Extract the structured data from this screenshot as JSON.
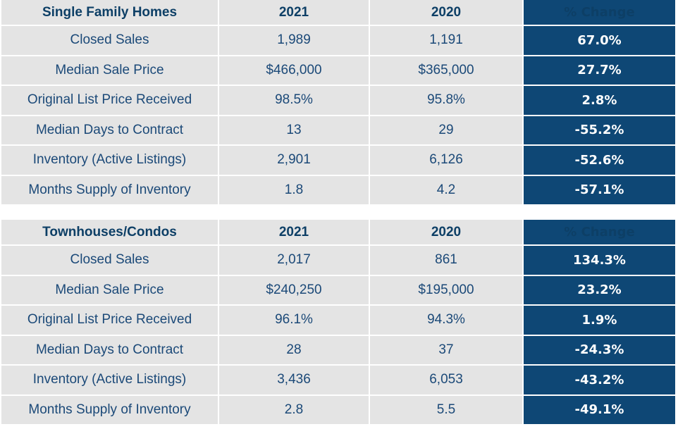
{
  "chart_data": [
    {
      "type": "table",
      "columns": [
        "Single Family Homes",
        "2021",
        "2020",
        "% Change"
      ],
      "rows": [
        [
          "Closed Sales",
          "1,989",
          "1,191",
          "67.0%"
        ],
        [
          "Median Sale Price",
          "$466,000",
          "$365,000",
          "27.7%"
        ],
        [
          "Original List Price Received",
          "98.5%",
          "95.8%",
          "2.8%"
        ],
        [
          "Median Days to Contract",
          "13",
          "29",
          "-55.2%"
        ],
        [
          "Inventory (Active Listings)",
          "2,901",
          "6,126",
          "-52.6%"
        ],
        [
          "Months Supply of Inventory",
          "1.8",
          "4.2",
          "-57.1%"
        ]
      ]
    },
    {
      "type": "table",
      "columns": [
        "Townhouses/Condos",
        "2021",
        "2020",
        "% Change"
      ],
      "rows": [
        [
          "Closed Sales",
          "2,017",
          "861",
          "134.3%"
        ],
        [
          "Median Sale Price",
          "$240,250",
          "$195,000",
          "23.2%"
        ],
        [
          "Original List Price Received",
          "96.1%",
          "94.3%",
          "1.9%"
        ],
        [
          "Median Days to Contract",
          "28",
          "37",
          "-24.3%"
        ],
        [
          "Inventory (Active Listings)",
          "3,436",
          "6,053",
          "-43.2%"
        ],
        [
          "Months Supply of Inventory",
          "2.8",
          "5.5",
          "-49.1%"
        ]
      ]
    }
  ],
  "colors": {
    "cell_background": "#e4e4e4",
    "text": "#1b4978",
    "change_column_background": "#0e4775",
    "change_column_text": "#ffffff"
  }
}
